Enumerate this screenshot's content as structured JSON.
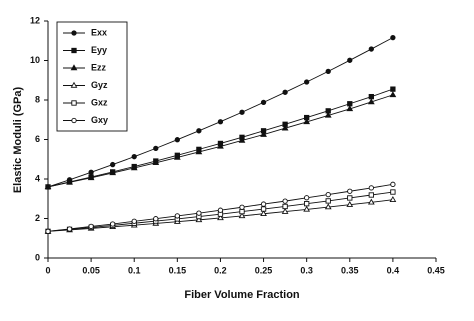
{
  "chart_data": {
    "type": "line",
    "x_label": "Fiber Volume Fraction",
    "y_label": "Elastic Moduli (GPa)",
    "x": [
      0,
      0.025,
      0.05,
      0.075,
      0.1,
      0.125,
      0.15,
      0.175,
      0.2,
      0.225,
      0.25,
      0.275,
      0.3,
      0.325,
      0.35,
      0.375,
      0.4
    ],
    "series": [
      {
        "name": "Exx",
        "color": "#111111",
        "marker": "circle-filled",
        "values": [
          3.6,
          3.96,
          4.34,
          4.73,
          5.13,
          5.55,
          5.99,
          6.44,
          6.9,
          7.38,
          7.88,
          8.39,
          8.91,
          9.45,
          10.01,
          10.58,
          11.16
        ]
      },
      {
        "name": "Eyy",
        "color": "#111111",
        "marker": "square-filled",
        "values": [
          3.6,
          3.85,
          4.1,
          4.36,
          4.63,
          4.91,
          5.2,
          5.5,
          5.8,
          6.11,
          6.44,
          6.77,
          7.11,
          7.45,
          7.81,
          8.17,
          8.55
        ]
      },
      {
        "name": "Ezz",
        "color": "#111111",
        "marker": "triangle-filled",
        "values": [
          3.6,
          3.83,
          4.06,
          4.31,
          4.56,
          4.82,
          5.09,
          5.37,
          5.65,
          5.95,
          6.25,
          6.57,
          6.89,
          7.22,
          7.55,
          7.9,
          8.26
        ]
      },
      {
        "name": "Gyz",
        "color": "#111111",
        "marker": "triangle-open",
        "values": [
          1.35,
          1.42,
          1.5,
          1.58,
          1.66,
          1.75,
          1.84,
          1.93,
          2.03,
          2.13,
          2.24,
          2.35,
          2.46,
          2.58,
          2.7,
          2.82,
          2.95
        ]
      },
      {
        "name": "Gxz",
        "color": "#111111",
        "marker": "square-open",
        "values": [
          1.35,
          1.45,
          1.55,
          1.65,
          1.76,
          1.87,
          1.98,
          2.1,
          2.22,
          2.35,
          2.48,
          2.61,
          2.75,
          2.89,
          3.04,
          3.19,
          3.34
        ]
      },
      {
        "name": "Gxy",
        "color": "#111111",
        "marker": "circle-open",
        "values": [
          1.35,
          1.47,
          1.6,
          1.72,
          1.86,
          1.99,
          2.13,
          2.27,
          2.42,
          2.57,
          2.73,
          2.88,
          3.05,
          3.21,
          3.38,
          3.55,
          3.73
        ]
      }
    ],
    "xlim": [
      0,
      0.45
    ],
    "xticks": [
      0,
      0.05,
      0.1,
      0.15,
      0.2,
      0.25,
      0.3,
      0.35,
      0.4,
      0.45
    ],
    "ylim": [
      0,
      12
    ],
    "yticks": [
      0,
      2,
      4,
      6,
      8,
      10,
      12
    ],
    "grid": false,
    "legend": "upper-left"
  }
}
